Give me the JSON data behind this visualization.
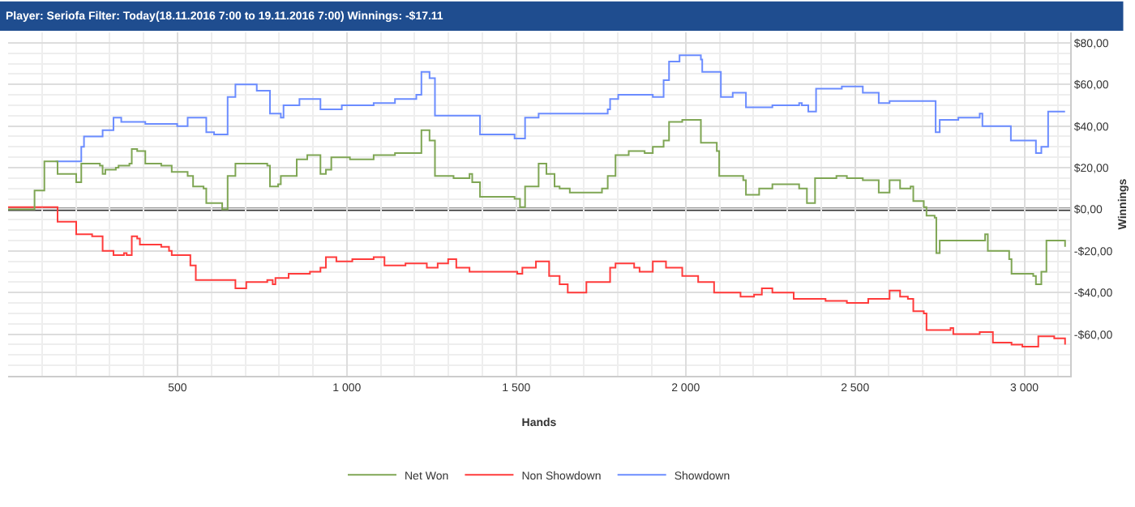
{
  "chart_data": {
    "type": "step",
    "title": "Player: Seriofa Filter: Today(18.11.2016 7:00 to 19.11.2016 7:00) Winnings: -$17.11",
    "xlabel": "Hands",
    "ylabel": "Winnings",
    "series": [
      {
        "name": "Net Won",
        "color": "#7fa654",
        "x": [
          0,
          75,
          78,
          107,
          138,
          146,
          201,
          216,
          271,
          279,
          287,
          318,
          326,
          358,
          365,
          381,
          405,
          452,
          483,
          530,
          546,
          577,
          585,
          632,
          648,
          671,
          734,
          765,
          773,
          797,
          805,
          844,
          852,
          883,
          915,
          922,
          938,
          954,
          1009,
          1079,
          1142,
          1205,
          1220,
          1244,
          1260,
          1315,
          1362,
          1370,
          1393,
          1495,
          1511,
          1526,
          1566,
          1589,
          1613,
          1628,
          1658,
          1753,
          1770,
          1793,
          1832,
          1879,
          1903,
          1935,
          1951,
          1990,
          2045,
          2092,
          2099,
          2170,
          2178,
          2217,
          2256,
          2335,
          2358,
          2382,
          2445,
          2476,
          2523,
          2570,
          2602,
          2633,
          2664,
          2672,
          2703,
          2711,
          2735,
          2740,
          2750,
          2821,
          2884,
          2892,
          2955,
          2962,
          3026,
          3034,
          3050,
          3065,
          3120
        ],
        "values": [
          0,
          0,
          9,
          23,
          23,
          17,
          13,
          22,
          21,
          17,
          19,
          20,
          21,
          22,
          29,
          28,
          22,
          21,
          18,
          16,
          11,
          10,
          3,
          0,
          16,
          22,
          22,
          21,
          11,
          12,
          16,
          16,
          24,
          26,
          26,
          17,
          19,
          25,
          24,
          26,
          27,
          27,
          38,
          33,
          16,
          15,
          17,
          13,
          6,
          5,
          1,
          11,
          22,
          17,
          11,
          10,
          8,
          10,
          16,
          26,
          28,
          27,
          30,
          33,
          42,
          43,
          32,
          28,
          16,
          14,
          7,
          10,
          12,
          10,
          3,
          15,
          16,
          15,
          14,
          8,
          14,
          10,
          11,
          4,
          1,
          -3,
          -4,
          -21,
          -15,
          -15,
          -12,
          -20,
          -24,
          -31,
          -32,
          -36,
          -30,
          -15,
          -18
        ]
      },
      {
        "name": "Non Showdown",
        "color": "#ff3b3b",
        "x": [
          0,
          75,
          146,
          201,
          248,
          271,
          279,
          311,
          342,
          350,
          365,
          381,
          389,
          452,
          475,
          483,
          538,
          554,
          616,
          671,
          703,
          765,
          781,
          789,
          828,
          891,
          922,
          938,
          969,
          1016,
          1079,
          1111,
          1173,
          1236,
          1268,
          1299,
          1323,
          1362,
          1440,
          1503,
          1518,
          1558,
          1589,
          1597,
          1628,
          1652,
          1707,
          1746,
          1777,
          1793,
          1848,
          1864,
          1903,
          1942,
          1990,
          2037,
          2084,
          2162,
          2202,
          2225,
          2256,
          2319,
          2413,
          2476,
          2539,
          2594,
          2602,
          2633,
          2656,
          2672,
          2703,
          2711,
          2782,
          2790,
          2868,
          2907,
          2962,
          2994,
          3041,
          3088,
          3120
        ],
        "values": [
          1,
          1,
          -6,
          -12,
          -13,
          -13,
          -20,
          -22,
          -21,
          -22,
          -13,
          -14,
          -17,
          -18,
          -20,
          -22,
          -27,
          -34,
          -34,
          -38,
          -35,
          -34,
          -36,
          -33,
          -31,
          -30,
          -28,
          -23,
          -25,
          -24,
          -23,
          -27,
          -26,
          -28,
          -26,
          -24,
          -28,
          -30,
          -30,
          -31,
          -28,
          -25,
          -25,
          -32,
          -36,
          -40,
          -35,
          -35,
          -28,
          -26,
          -28,
          -30,
          -25,
          -28,
          -32,
          -35,
          -40,
          -42,
          -41,
          -38,
          -40,
          -43,
          -44,
          -45,
          -43,
          -43,
          -39,
          -42,
          -43,
          -49,
          -50,
          -58,
          -57,
          -60,
          -59,
          -64,
          -65,
          -66,
          -61,
          -62,
          -65
        ]
      },
      {
        "name": "Showdown",
        "color": "#6b8cff",
        "x": [
          140,
          185,
          216,
          224,
          279,
          311,
          334,
          405,
          499,
          530,
          577,
          585,
          608,
          648,
          671,
          734,
          773,
          805,
          813,
          860,
          922,
          985,
          1079,
          1142,
          1205,
          1220,
          1244,
          1260,
          1393,
          1495,
          1526,
          1566,
          1628,
          1762,
          1770,
          1777,
          1801,
          1903,
          1935,
          1951,
          1982,
          2005,
          2045,
          2049,
          2099,
          2104,
          2139,
          2178,
          2249,
          2256,
          2335,
          2343,
          2362,
          2382,
          2385,
          2461,
          2523,
          2570,
          2602,
          2664,
          2738,
          2750,
          2805,
          2868,
          2876,
          2889,
          2955,
          2960,
          3026,
          3034,
          3050,
          3070,
          3120
        ],
        "values": [
          23,
          23,
          30,
          35,
          38,
          44,
          42,
          41,
          40,
          44,
          44,
          37,
          36,
          54,
          60,
          57,
          46,
          44,
          50,
          53,
          48,
          50,
          51,
          53,
          55,
          66,
          63,
          45,
          36,
          34,
          44,
          46,
          46,
          46,
          48,
          53,
          55,
          54,
          62,
          71,
          74,
          74,
          72,
          66,
          66,
          54,
          56,
          49,
          49,
          50,
          51,
          50,
          47,
          47,
          58,
          59,
          56,
          51,
          52,
          52,
          37,
          43,
          44,
          46,
          40,
          40,
          40,
          33,
          33,
          27,
          30,
          47,
          47
        ]
      }
    ],
    "xlim": [
      0,
      3135
    ],
    "xticks": [
      500,
      {
        "value": 1000,
        "label": "1 000"
      },
      {
        "value": 1500,
        "label": "1 500"
      },
      {
        "value": 2000,
        "label": "2 000"
      },
      {
        "value": 2500,
        "label": "2 500"
      },
      {
        "value": 3000,
        "label": "3 000"
      }
    ],
    "ylim": [
      -80,
      85
    ],
    "yticks": [
      {
        "value": -60,
        "label": "-$60,00"
      },
      {
        "value": -40,
        "label": "-$40,00"
      },
      {
        "value": -20,
        "label": "-$20,00"
      },
      {
        "value": 0,
        "label": "$0,00"
      },
      {
        "value": 20,
        "label": "$20,00"
      },
      {
        "value": 40,
        "label": "$40,00"
      },
      {
        "value": 60,
        "label": "$60,00"
      },
      {
        "value": 80,
        "label": "$80,00"
      }
    ],
    "ref_lines": [
      {
        "axis": "y",
        "value": 0,
        "color": "#333333"
      }
    ],
    "grid": true,
    "legend": "bottom",
    "marker": "none",
    "line_style": "solid"
  }
}
